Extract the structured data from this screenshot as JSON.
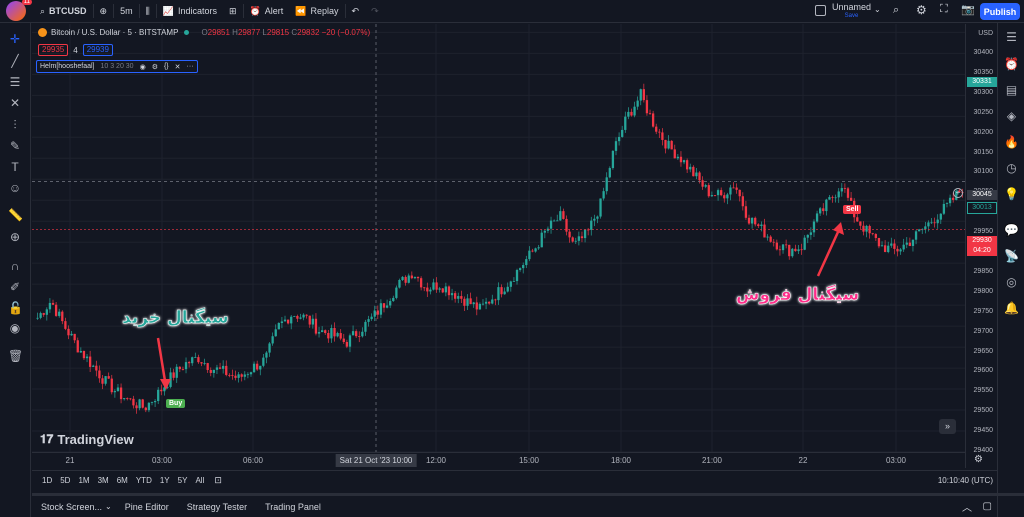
{
  "topbar": {
    "logo_badge": "11",
    "symbol": "BTCUSD",
    "interval": "5m",
    "indicators_label": "Indicators",
    "alert_label": "Alert",
    "replay_label": "Replay",
    "layout_name": "Unnamed",
    "layout_status": "Save",
    "publish_label": "Publish"
  },
  "legend": {
    "title": "Bitcoin / U.S. Dollar · 5 · BITSTAMP",
    "open_label": "O",
    "open": "29851",
    "high_label": "H",
    "high": "29877",
    "low_label": "L",
    "low": "29815",
    "close_label": "C",
    "close": "29832",
    "change": "−20 (−0.07%)",
    "bid": "29935",
    "spread": "4",
    "ask": "29939",
    "indicator": "Helm[hooshefaal]",
    "indicator_params": "10 3 20 30"
  },
  "price_axis": {
    "currency": "USD",
    "ticks": [
      "30400",
      "30350",
      "30300",
      "30250",
      "30200",
      "30150",
      "30100",
      "30050",
      "30000",
      "29950",
      "29900",
      "29850",
      "29800",
      "29750",
      "29700",
      "29650",
      "29600",
      "29550",
      "29500",
      "29450",
      "29400"
    ],
    "tag_top": "30331",
    "tag_crosshair": "30045",
    "tag_last": "30013",
    "tag_current": "29930",
    "tag_countdown": "04:20"
  },
  "time_axis": {
    "ticks": [
      "21",
      "03:00",
      "06:00",
      "12:00",
      "15:00",
      "18:00",
      "21:00",
      "22",
      "03:00"
    ],
    "crosshair": "Sat 21 Oct '23   10:00"
  },
  "range_bar": {
    "ranges": [
      "1D",
      "5D",
      "1M",
      "3M",
      "6M",
      "YTD",
      "1Y",
      "5Y",
      "All"
    ],
    "clock": "10:10:40 (UTC)"
  },
  "bottom_tabs": [
    "Stock Screen...",
    "Pine Editor",
    "Strategy Tester",
    "Trading Panel"
  ],
  "watermark": "TradingView",
  "annotations": {
    "buy_text": "سیگنال خرید",
    "sell_text": "سیگنال فروش",
    "buy_label": "Buy",
    "sell_label": "Sell"
  },
  "colors": {
    "up": "#26a69a",
    "down": "#f23645",
    "background": "#131722",
    "accent": "#2962ff"
  },
  "chart_data": {
    "type": "candlestick",
    "y_range": [
      29400,
      30420
    ],
    "x_ticks": [
      "21",
      "03:00",
      "06:00",
      "12:00",
      "15:00",
      "18:00",
      "21:00",
      "22",
      "03:00"
    ],
    "closes": [
      29720,
      29760,
      29700,
      29650,
      29610,
      29570,
      29540,
      29520,
      29505,
      29540,
      29580,
      29610,
      29625,
      29600,
      29590,
      29575,
      29600,
      29620,
      29700,
      29730,
      29720,
      29690,
      29680,
      29660,
      29690,
      29720,
      29760,
      29800,
      29830,
      29790,
      29800,
      29780,
      29760,
      29740,
      29770,
      29800,
      29840,
      29880,
      29930,
      29960,
      29890,
      29920,
      29990,
      30120,
      30200,
      30250,
      30180,
      30130,
      30100,
      30060,
      30020,
      30010,
      30040,
      29960,
      29930,
      29900,
      29880,
      29890,
      29950,
      29995,
      30040,
      29960,
      29920,
      29890,
      29880,
      29900,
      29930,
      29960,
      29990,
      30030
    ]
  }
}
